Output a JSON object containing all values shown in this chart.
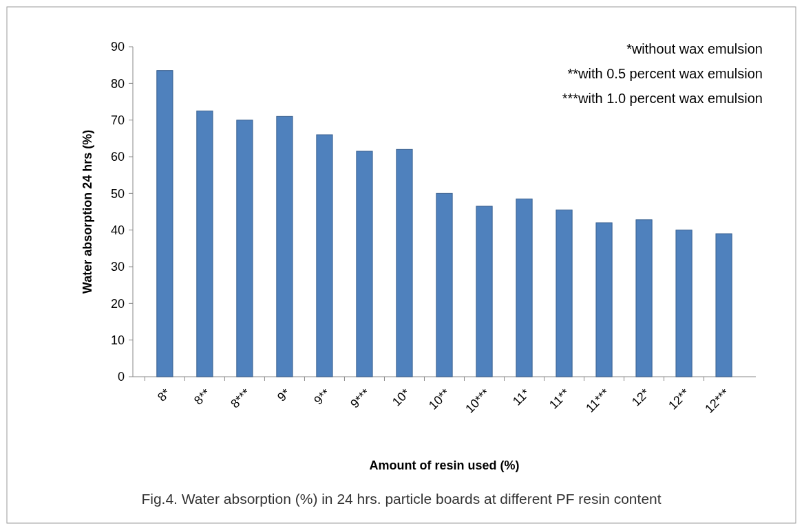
{
  "chart_data": {
    "type": "bar",
    "xlabel": "Amount of resin used (%)",
    "ylabel": "Water absorption 24 hrs (%)",
    "categories": [
      "8*",
      "8**",
      "8***",
      "9*",
      "9**",
      "9***",
      "10*",
      "10**",
      "10***",
      "11*",
      "11**",
      "11***",
      "12*",
      "12**",
      "12***"
    ],
    "values": [
      83.5,
      72.5,
      70,
      71,
      66,
      61.5,
      62,
      50,
      46.5,
      48.5,
      45.5,
      42,
      42.8,
      40,
      39
    ],
    "color": "#4f81bd",
    "ylim": [
      0,
      90
    ],
    "yticks": [
      0,
      10,
      20,
      30,
      40,
      50,
      60,
      70,
      80,
      90
    ],
    "grid": false,
    "annotations": [
      "*without wax emulsion",
      "**with 0.5 percent wax emulsion",
      "***with 1.0 percent wax emulsion",
      "Fig.4. Water absorption (%) in 24 hrs. particle boards at different PF resin content"
    ]
  }
}
